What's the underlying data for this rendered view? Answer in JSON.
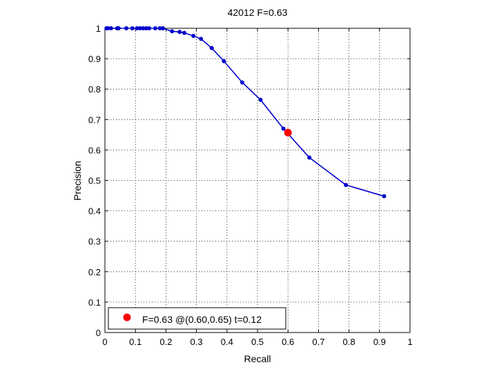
{
  "chart_data": {
    "type": "line",
    "title": "42012 F=0.63",
    "xlabel": "Recall",
    "ylabel": "Precision",
    "xlim": [
      0,
      1
    ],
    "ylim": [
      0,
      1
    ],
    "grid": true,
    "legend_position": "bottom-left",
    "x_ticks": [
      "0",
      "0.1",
      "0.2",
      "0.3",
      "0.4",
      "0.5",
      "0.6",
      "0.7",
      "0.8",
      "0.9",
      "1"
    ],
    "y_ticks": [
      "0",
      "0.1",
      "0.2",
      "0.3",
      "0.4",
      "0.5",
      "0.6",
      "0.7",
      "0.8",
      "0.9",
      "1"
    ],
    "series": [
      {
        "color": "#0000cc",
        "marker": "dot",
        "x": [
          0.005,
          0.01,
          0.02,
          0.04,
          0.045,
          0.07,
          0.09,
          0.105,
          0.115,
          0.125,
          0.135,
          0.145,
          0.165,
          0.18,
          0.19,
          0.22,
          0.245,
          0.26,
          0.29,
          0.315,
          0.35,
          0.39,
          0.45,
          0.51,
          0.585,
          0.67,
          0.79,
          0.915
        ],
        "y": [
          1.0,
          1.0,
          1.0,
          1.0,
          1.0,
          1.0,
          1.0,
          1.0,
          1.0,
          1.0,
          1.0,
          1.0,
          1.0,
          1.0,
          1.0,
          0.99,
          0.988,
          0.985,
          0.975,
          0.965,
          0.935,
          0.892,
          0.822,
          0.765,
          0.67,
          0.575,
          0.485,
          0.448
        ]
      }
    ],
    "best_point": {
      "label": "F=0.63 @(0.60,0.65) t=0.12",
      "x": 0.6,
      "y": 0.657,
      "color": "#ff0000"
    }
  }
}
